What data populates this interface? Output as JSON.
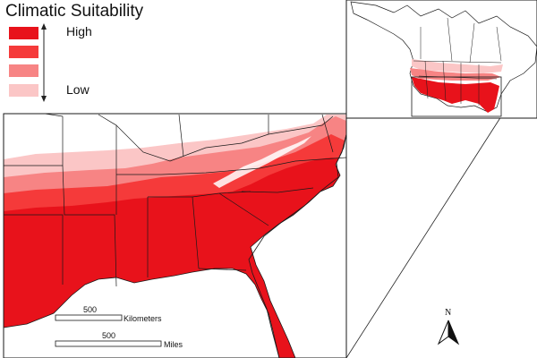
{
  "legend": {
    "title": "Climatic Suitability",
    "high_label": "High",
    "low_label": "Low",
    "classes": [
      "#e8121b",
      "#f53a3a",
      "#f78484",
      "#fbc6c6"
    ]
  },
  "scale_bar": {
    "km_value": "500",
    "km_unit": "Kilometers",
    "mi_value": "500",
    "mi_unit": "Miles"
  },
  "north_arrow": {
    "label": "N"
  },
  "colors": {
    "high": "#e8121b",
    "medium_high": "#f53a3a",
    "medium_low": "#f78484",
    "low": "#fbc6c6",
    "border": "#1a1a1a"
  }
}
